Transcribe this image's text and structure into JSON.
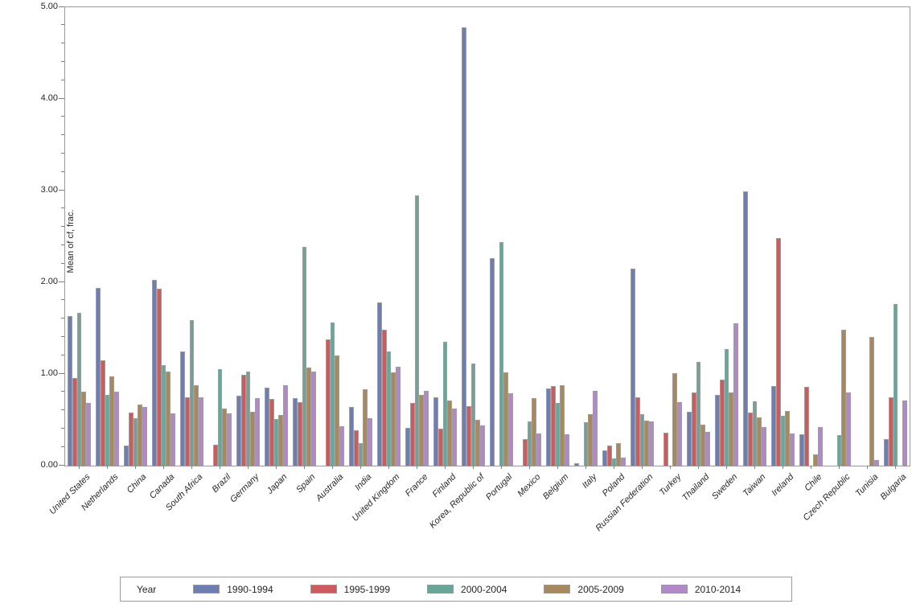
{
  "chart_data": {
    "type": "bar",
    "title": "",
    "xlabel": "",
    "ylabel": "Mean of cf, frac.",
    "ylim": [
      0,
      5
    ],
    "y_tick_labels": [
      "0.00",
      "1.00",
      "2.00",
      "3.00",
      "4.00",
      "5.00"
    ],
    "y_minor_tick_step": 0.2,
    "grid": false,
    "legend_title": "Year",
    "legend_position": "bottom",
    "categories": [
      "United States",
      "Netherlands",
      "China",
      "Canada",
      "South Africa",
      "Brazil",
      "Germany",
      "Japan",
      "Spain",
      "Australia",
      "India",
      "United Kingdom",
      "France",
      "Finland",
      "Korea, Republic of",
      "Portugal",
      "Mexico",
      "Belgium",
      "Italy",
      "Poland",
      "Russian Federation",
      "Turkey",
      "Thailand",
      "Sweden",
      "Taiwan",
      "Ireland",
      "Chile",
      "Czech Republic",
      "Tunisia",
      "Bulgaria"
    ],
    "series": [
      {
        "name": "1990-1994",
        "color": "#6f7eb2",
        "values": [
          1.63,
          1.94,
          0.22,
          2.03,
          1.25,
          0,
          0.76,
          0.85,
          0.74,
          0,
          0.64,
          1.78,
          0.41,
          0.75,
          4.78,
          2.26,
          0,
          0.84,
          0.03,
          0.17,
          2.15,
          0,
          0.59,
          0.77,
          2.99,
          0.87,
          0.34,
          0,
          0,
          0.29
        ]
      },
      {
        "name": "1995-1999",
        "color": "#cd5a5c",
        "values": [
          0.96,
          1.15,
          0.58,
          1.93,
          0.75,
          0.23,
          0.99,
          0.73,
          0.69,
          1.38,
          0.39,
          1.48,
          0.68,
          0.4,
          0.65,
          0,
          0.29,
          0.87,
          0,
          0.22,
          0.75,
          0.36,
          0.8,
          0.94,
          0.58,
          2.48,
          0.86,
          0,
          0,
          0.75
        ]
      },
      {
        "name": "2000-2004",
        "color": "#69a69a",
        "values": [
          1.67,
          0.77,
          0.52,
          1.1,
          1.59,
          1.05,
          1.03,
          0.51,
          2.39,
          1.56,
          0.25,
          1.25,
          2.95,
          1.35,
          1.11,
          2.44,
          0.48,
          0.68,
          0.47,
          0.08,
          0.56,
          0,
          1.13,
          1.27,
          0.7,
          0.54,
          0,
          0.33,
          0,
          1.76
        ]
      },
      {
        "name": "2005-2009",
        "color": "#a8895d",
        "values": [
          0.81,
          0.97,
          0.67,
          1.03,
          0.88,
          0.62,
          0.59,
          0.55,
          1.07,
          1.2,
          0.83,
          1.02,
          0.77,
          0.71,
          0.5,
          1.02,
          0.74,
          0.88,
          0.56,
          0.25,
          0.49,
          1.01,
          0.45,
          0.8,
          0.53,
          0.6,
          0.12,
          1.48,
          1.4,
          0
        ]
      },
      {
        "name": "2010-2014",
        "color": "#b289c8",
        "values": [
          0.68,
          0.81,
          0.64,
          0.57,
          0.75,
          0.57,
          0.74,
          0.88,
          1.03,
          0.43,
          0.52,
          1.08,
          0.82,
          0.62,
          0.44,
          0.79,
          0.35,
          0.34,
          0.82,
          0.09,
          0.48,
          0.69,
          0.37,
          1.55,
          0.42,
          0.35,
          0.42,
          0.8,
          0.06,
          0.71
        ]
      }
    ],
    "colors": {
      "axis": "#808080",
      "frame": "#9b9b9b",
      "bar_border": "#9e9e9e",
      "text": "#262626",
      "background": "#ffffff"
    }
  }
}
